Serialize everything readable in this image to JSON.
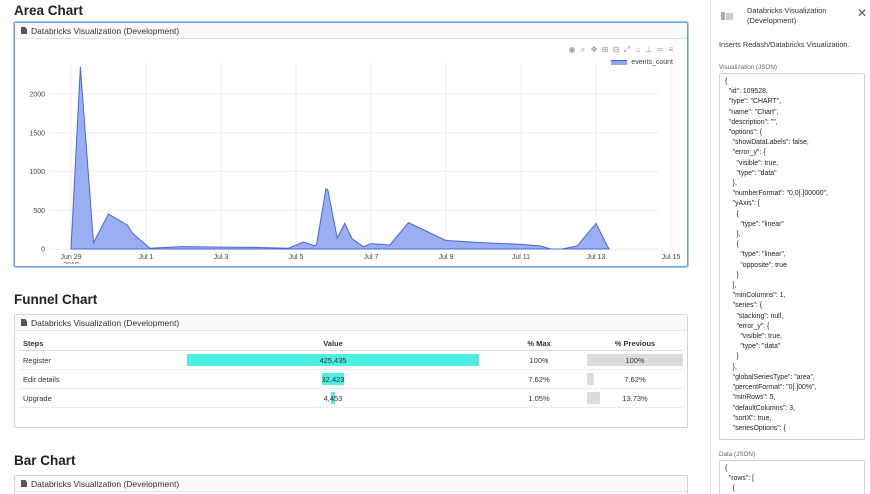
{
  "sections": {
    "area_title": "Area Chart",
    "funnel_title": "Funnel Chart",
    "bar_title": "Bar Chart"
  },
  "card_header": "Databricks Visualization (Development)",
  "modebar_icons": [
    "camera-icon",
    "zoom-icon",
    "pan-icon",
    "zoom-in-icon",
    "zoom-out-icon",
    "autoscale-icon",
    "reset-axes-icon",
    "spike-icon",
    "compare-icon",
    "hover-closest-icon"
  ],
  "chart_data": {
    "type": "area",
    "x_ticks": [
      "Jun 29\n2019",
      "Jul 1",
      "Jul 3",
      "Jul 5",
      "Jul 7",
      "Jul 9",
      "Jul 11",
      "Jul 13",
      "Jul 15"
    ],
    "y_ticks": [
      0,
      500,
      1000,
      1500,
      2000
    ],
    "ylim": [
      0,
      2400
    ],
    "legend": "events_count",
    "legend_position": "top-right",
    "grid": true,
    "color": "#8fa6f0",
    "line_color": "#4a64d9",
    "series": [
      {
        "name": "events_count",
        "x": [
          0.0,
          0.25,
          0.6,
          1.0,
          1.5,
          1.65,
          2.1,
          2.5,
          3.0,
          4.0,
          5.0,
          5.8,
          6.2,
          6.5,
          6.55,
          6.8,
          6.85,
          7.1,
          7.3,
          7.5,
          7.8,
          8.0,
          8.3,
          8.5,
          9.0,
          10.0,
          11.0,
          12.0,
          12.5,
          12.8,
          13.1,
          13.5,
          14.0,
          14.3,
          14.35
        ],
        "y": [
          0,
          2350,
          80,
          450,
          310,
          200,
          10,
          20,
          30,
          25,
          20,
          10,
          90,
          40,
          60,
          780,
          760,
          140,
          330,
          130,
          30,
          70,
          60,
          50,
          340,
          110,
          80,
          60,
          40,
          0,
          0,
          40,
          330,
          40,
          0
        ]
      }
    ]
  },
  "funnel": {
    "headers": [
      "Steps",
      "Value",
      "% Max",
      "% Previous"
    ],
    "rows": [
      {
        "step": "Register",
        "value": "425,435",
        "max": "100%",
        "prev": "100%",
        "max_frac": 1.0,
        "prev_frac": 1.0
      },
      {
        "step": "Edit details",
        "value": "32,423",
        "max": "7.62%",
        "prev": "7.62%",
        "max_frac": 0.0762,
        "prev_frac": 0.0762
      },
      {
        "step": "Upgrade",
        "value": "4,453",
        "max": "1.05%",
        "prev": "13.73%",
        "max_frac": 0.0105,
        "prev_frac": 0.1373
      }
    ]
  },
  "panel": {
    "title": "Databricks Visualization (Development)",
    "description": "Inserts Redash/Databricks Visualization.",
    "vis_label": "Visualization (JSON)",
    "vis_json": "{\n  \"id\": 109528,\n  \"type\": \"CHART\",\n  \"name\": \"Chart\",\n  \"description\": \"\",\n  \"options\": {\n    \"showDataLabels\": false,\n    \"error_y\": {\n      \"visible\": true,\n      \"type\": \"data\"\n    },\n    \"numberFormat\": \"0,0[.]00000\",\n    \"yAxis\": [\n      {\n        \"type\": \"linear\"\n      },\n      {\n        \"type\": \"linear\",\n        \"opposite\": true\n      }\n    ],\n    \"minColumns\": 1,\n    \"series\": {\n      \"stacking\": null,\n      \"error_y\": {\n        \"visible\": true,\n        \"type\": \"data\"\n      }\n    },\n    \"globalSeriesType\": \"area\",\n    \"percentFormat\": \"0[.]00%\",\n    \"minRows\": 5,\n    \"defaultColumns\": 3,\n    \"sortX\": true,\n    \"seriesOptions\": {",
    "data_label": "Data (JSON)",
    "data_json": "{\n  \"rows\": [\n    {"
  }
}
